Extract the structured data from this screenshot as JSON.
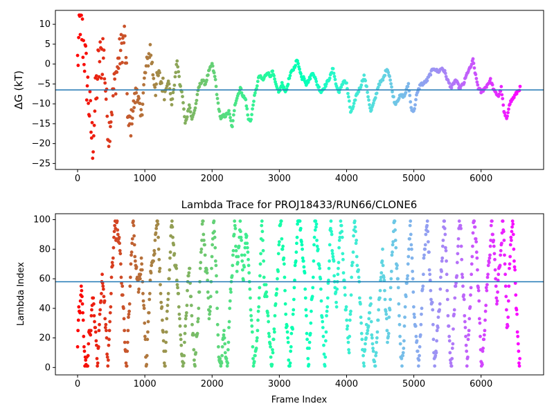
{
  "chart_data": [
    {
      "type": "scatter",
      "title": "",
      "xlabel": "",
      "ylabel": "ΔG (kT)",
      "xlim": [
        -330,
        6930
      ],
      "ylim": [
        -26.5,
        13.5
      ],
      "xticks": [
        0,
        1000,
        2000,
        3000,
        4000,
        5000,
        6000
      ],
      "yticks": [
        -25,
        -20,
        -15,
        -10,
        -5,
        0,
        5,
        10
      ],
      "hline": -6.5,
      "hline_color": "#1f77b4",
      "color_scale": "rainbow (red at frame 0 → violet at last frame)",
      "trace": {
        "n_frames": 6600,
        "x": [
          0,
          40,
          100,
          160,
          220,
          300,
          380,
          460,
          540,
          620,
          700,
          760,
          820,
          880,
          940,
          1000,
          1080,
          1120,
          1160,
          1200,
          1260,
          1300,
          1350,
          1400,
          1440,
          1480,
          1520,
          1560,
          1600,
          1630,
          1660,
          1700,
          1750,
          1800,
          1850,
          1900,
          1950,
          2000,
          2050,
          2080,
          2110,
          2130,
          2160,
          2200,
          2250,
          2300,
          2340,
          2380,
          2420,
          2460,
          2500,
          2540,
          2580,
          2620,
          2660,
          2700,
          2760,
          2820,
          2860,
          2900,
          2960,
          3000,
          3040,
          3100,
          3140,
          3180,
          3220,
          3260,
          3300,
          3340,
          3360,
          3400,
          3440,
          3500,
          3560,
          3620,
          3700,
          3760,
          3800,
          3840,
          3880,
          3920,
          3960,
          4000,
          4060,
          4100,
          4140,
          4200,
          4260,
          4300,
          4360,
          4420,
          4480,
          4540,
          4600,
          4640,
          4680,
          4720,
          4760,
          4800,
          4860,
          4920,
          4960,
          5000,
          5040,
          5100,
          5140,
          5200,
          5260,
          5300,
          5360,
          5420,
          5460,
          5500,
          5560,
          5620,
          5680,
          5740,
          5800,
          5840,
          5880,
          5920,
          5960,
          6000,
          6060,
          6100,
          6140,
          6200,
          6260,
          6300,
          6340,
          6380,
          6420,
          6460,
          6500,
          6540,
          6580
        ],
        "y": [
          0,
          12,
          3,
          -8,
          -20,
          -2,
          4,
          -18,
          -6,
          2,
          7,
          -17,
          -12,
          -6,
          -14,
          -3,
          4,
          -2,
          -6,
          -3,
          -5,
          -7,
          -4,
          -10,
          -5,
          1,
          -5,
          -8,
          -15,
          -13,
          -10,
          -14,
          -11,
          -6,
          -4,
          -5,
          -2,
          0,
          -4,
          -9,
          -12,
          -14,
          -13,
          -13,
          -12,
          -16,
          -10,
          -8,
          -6,
          -8,
          -9,
          -14,
          -14,
          -9,
          -6,
          -3,
          -4,
          -2,
          -3,
          -2,
          -6,
          -7,
          -5,
          -7,
          -4,
          -2,
          -1,
          1,
          -1,
          -4,
          -3,
          -5,
          -4,
          -2,
          -5,
          -7,
          -5,
          -3,
          -1,
          -5,
          -7,
          -6,
          -4,
          -5,
          -12,
          -11,
          -8,
          -6,
          -3,
          -6,
          -12,
          -9,
          -5,
          -4,
          -1,
          -3,
          -7,
          -10,
          -9,
          -8,
          -8,
          -5,
          -11,
          -12,
          -8,
          -5,
          -5,
          -4,
          -2,
          -1,
          -2,
          -1,
          -2,
          -4,
          -6,
          -4,
          -6,
          -5,
          -2,
          -1,
          1,
          -3,
          -6,
          -7,
          -6,
          -5,
          -4,
          -7,
          -8,
          -6,
          -12,
          -14,
          -10,
          -9,
          -8,
          -7,
          -6
        ]
      }
    },
    {
      "type": "scatter",
      "title": "Lambda Trace for PROJ18433/RUN66/CLONE6",
      "xlabel": "Frame Index",
      "ylabel": "Lambda Index",
      "xlim": [
        -330,
        6930
      ],
      "ylim": [
        -5,
        104
      ],
      "xticks": [
        0,
        1000,
        2000,
        3000,
        4000,
        5000,
        6000
      ],
      "yticks": [
        0,
        20,
        40,
        60,
        80,
        100
      ],
      "hline": 58,
      "hline_color": "#1f77b4",
      "color_scale": "rainbow (red at frame 0 → violet at last frame)",
      "lambda_range": [
        0,
        99
      ]
    }
  ]
}
